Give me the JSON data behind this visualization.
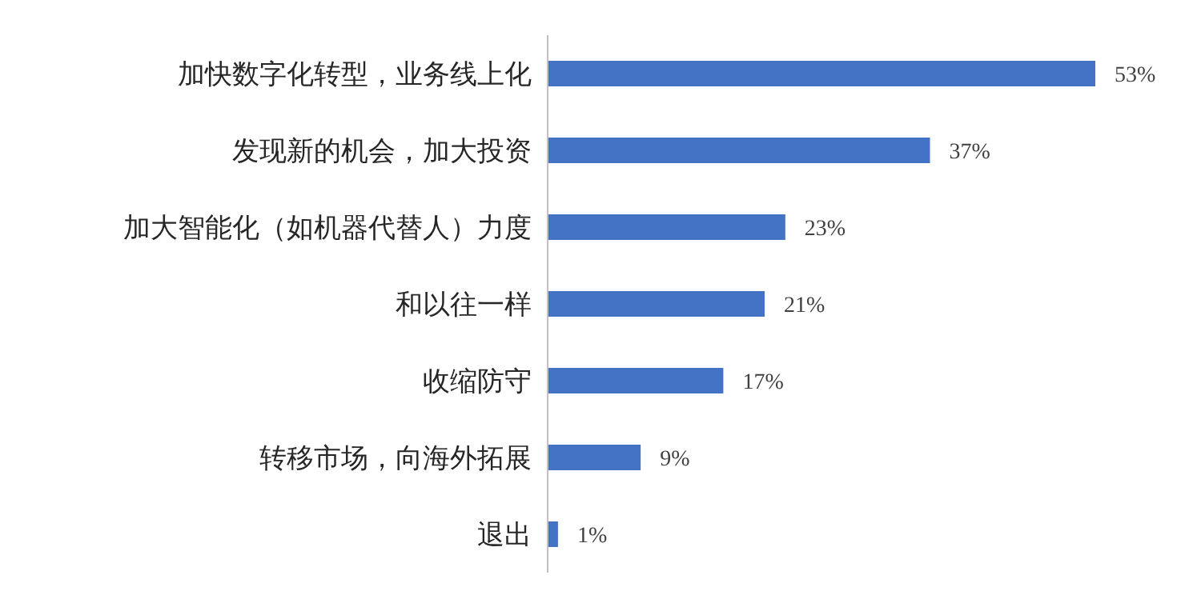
{
  "chart_data": {
    "type": "bar",
    "orientation": "horizontal",
    "categories": [
      "加快数字化转型，业务线上化",
      "发现新的机会，加大投资",
      "加大智能化（如机器代替人）力度",
      "和以往一样",
      "收缩防守",
      "转移市场，向海外拓展",
      "退出"
    ],
    "values": [
      53,
      37,
      23,
      21,
      17,
      9,
      1
    ],
    "value_labels": [
      "53%",
      "37%",
      "23%",
      "21%",
      "17%",
      "9%",
      "1%"
    ],
    "color": "#4472c4"
  }
}
